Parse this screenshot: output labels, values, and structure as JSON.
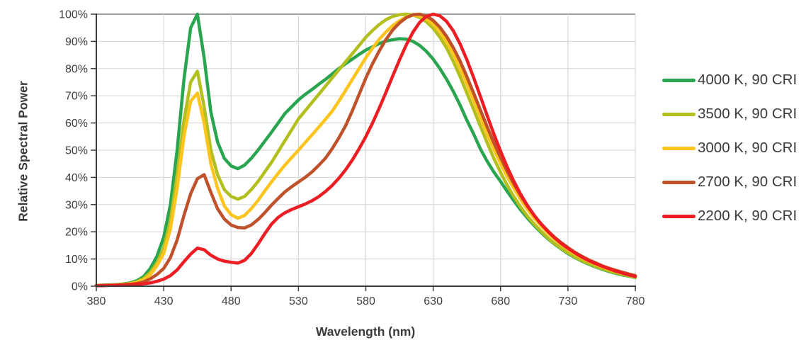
{
  "chart_data": {
    "type": "line",
    "title": "",
    "xlabel": "Wavelength (nm)",
    "ylabel": "Relative Spectral Power",
    "xlim": [
      380,
      780
    ],
    "ylim": [
      0,
      100
    ],
    "x_ticks": [
      380,
      430,
      480,
      530,
      580,
      630,
      680,
      730,
      780
    ],
    "y_ticks": [
      0,
      10,
      20,
      30,
      40,
      50,
      60,
      70,
      80,
      90,
      100
    ],
    "y_tick_suffix": "%",
    "grid": true,
    "legend_position": "right",
    "x_start": 380,
    "x_step": 5,
    "style": {
      "grid_color": "#d9d9d9",
      "top_grid_color": "#9f9f9f",
      "axis_color": "#3b3b3b",
      "tick_label_color": "#3f3f3f",
      "background": "#ffffff",
      "line_width": 4.5
    },
    "series": [
      {
        "name": "4000 K, 90 CRI",
        "color": "#2aa54f",
        "values": [
          0.3,
          0.4,
          0.5,
          0.6,
          0.8,
          1.2,
          2,
          3.5,
          6.5,
          11,
          18,
          30,
          50,
          76,
          95,
          100,
          84,
          64,
          53,
          47,
          44.2,
          43.2,
          44.5,
          47,
          50,
          53.3,
          56.6,
          60,
          63.5,
          66,
          68.5,
          70.5,
          72.3,
          74.2,
          76,
          78,
          80,
          81.8,
          83.5,
          85.2,
          86.8,
          88,
          89.2,
          90.1,
          90.6,
          91,
          90.8,
          90,
          88.5,
          86.3,
          83.5,
          80,
          76,
          71.5,
          66.5,
          61,
          56,
          50.5,
          46,
          42,
          38.5,
          34.8,
          31.3,
          28,
          25,
          22.3,
          19.8,
          17.5,
          15.5,
          13.7,
          12,
          10.6,
          9.3,
          8.2,
          7.2,
          6.3,
          5.5,
          4.8,
          4.2,
          3.7,
          3.2
        ]
      },
      {
        "name": "3500 K, 90 CRI",
        "color": "#b2bf1f",
        "values": [
          0.3,
          0.3,
          0.4,
          0.5,
          0.7,
          1,
          1.6,
          2.8,
          5,
          8.5,
          14,
          24,
          41,
          61,
          75,
          79,
          66,
          50,
          41,
          35.5,
          33,
          32,
          33,
          35.5,
          38.5,
          42,
          45.5,
          49.5,
          53.5,
          57.5,
          61.5,
          64.5,
          67.5,
          70.5,
          73.5,
          76.5,
          79.5,
          82.5,
          85.5,
          88.5,
          91.5,
          94,
          96.2,
          98,
          99.2,
          99.8,
          100,
          99.7,
          98.8,
          97.2,
          94.8,
          91.5,
          87.5,
          82.5,
          77,
          71,
          65,
          58.8,
          52.8,
          47,
          41.8,
          37,
          32.8,
          29,
          25.7,
          22.8,
          20.2,
          17.8,
          15.7,
          13.9,
          12.3,
          10.8,
          9.5,
          8.4,
          7.4,
          6.5,
          5.7,
          5,
          4.4,
          3.8,
          3.3
        ]
      },
      {
        "name": "3000 K, 90 CRI",
        "color": "#fcc41d",
        "values": [
          0.3,
          0.3,
          0.4,
          0.5,
          0.6,
          0.9,
          1.4,
          2.4,
          4.2,
          7.5,
          12,
          21,
          36,
          55,
          68,
          71,
          60,
          45,
          36,
          29.5,
          26.3,
          25,
          26,
          28.5,
          31.5,
          35,
          38.3,
          41.5,
          44.5,
          47.3,
          50,
          52.8,
          55.6,
          58.4,
          61.3,
          64.3,
          68,
          72,
          76,
          80,
          84,
          87.5,
          90.8,
          93.5,
          95.8,
          97.6,
          99,
          99.6,
          99.3,
          98.2,
          96.3,
          93.5,
          89.8,
          85.3,
          80,
          74.3,
          68.3,
          62,
          56,
          50.3,
          45,
          40.2,
          35.8,
          31.8,
          28.2,
          25,
          22.2,
          19.6,
          17.3,
          15.3,
          13.5,
          11.9,
          10.5,
          9.3,
          8.2,
          7.2,
          6.3,
          5.5,
          4.8,
          4.2,
          3.6
        ]
      },
      {
        "name": "2700 K, 90 CRI",
        "color": "#c0522b",
        "values": [
          0.2,
          0.3,
          0.3,
          0.4,
          0.5,
          0.7,
          1,
          1.6,
          2.7,
          4.3,
          6.5,
          10.5,
          17,
          26,
          34,
          39.5,
          41,
          34.5,
          28.5,
          24.7,
          22.5,
          21.6,
          21.4,
          22.5,
          24.5,
          27,
          29.8,
          32.3,
          34.7,
          36.6,
          38.3,
          40,
          42,
          44.4,
          47,
          50.5,
          54.5,
          59,
          64.5,
          70.5,
          76.5,
          81.8,
          86.5,
          90.7,
          94.2,
          96.8,
          98.7,
          99.8,
          100,
          99.3,
          97.7,
          95.2,
          91.8,
          87.6,
          82.7,
          77,
          71,
          64.8,
          58.7,
          52.8,
          47.3,
          42.2,
          37.5,
          33.2,
          29.4,
          26,
          23,
          20.4,
          18,
          16,
          14.2,
          12.5,
          11.1,
          9.8,
          8.7,
          7.6,
          6.7,
          5.9,
          5.2,
          4.5,
          3.9
        ]
      },
      {
        "name": "2200 K, 90 CRI",
        "color": "#ec1e24",
        "values": [
          0.2,
          0.2,
          0.3,
          0.3,
          0.4,
          0.5,
          0.7,
          0.9,
          1.2,
          1.8,
          2.6,
          3.9,
          6,
          9,
          11.8,
          14,
          13.4,
          11.4,
          10,
          9.2,
          8.8,
          8.5,
          9.5,
          12,
          15.5,
          19.3,
          22.8,
          25.3,
          27,
          28.2,
          29.2,
          30.2,
          31.4,
          32.9,
          34.8,
          37,
          39.7,
          42.8,
          46.4,
          50.5,
          55,
          60,
          65.5,
          71.3,
          77.3,
          83.2,
          88.7,
          93.4,
          97,
          99.2,
          100,
          99.4,
          97.3,
          93.8,
          89,
          83.2,
          76.7,
          69.8,
          62.8,
          56,
          49.6,
          43.7,
          38.4,
          33.7,
          29.6,
          26,
          22.9,
          20.2,
          17.8,
          15.7,
          13.9,
          12.3,
          10.8,
          9.5,
          8.4,
          7.4,
          6.5,
          5.6,
          4.9,
          4.2,
          3.6
        ]
      }
    ]
  }
}
